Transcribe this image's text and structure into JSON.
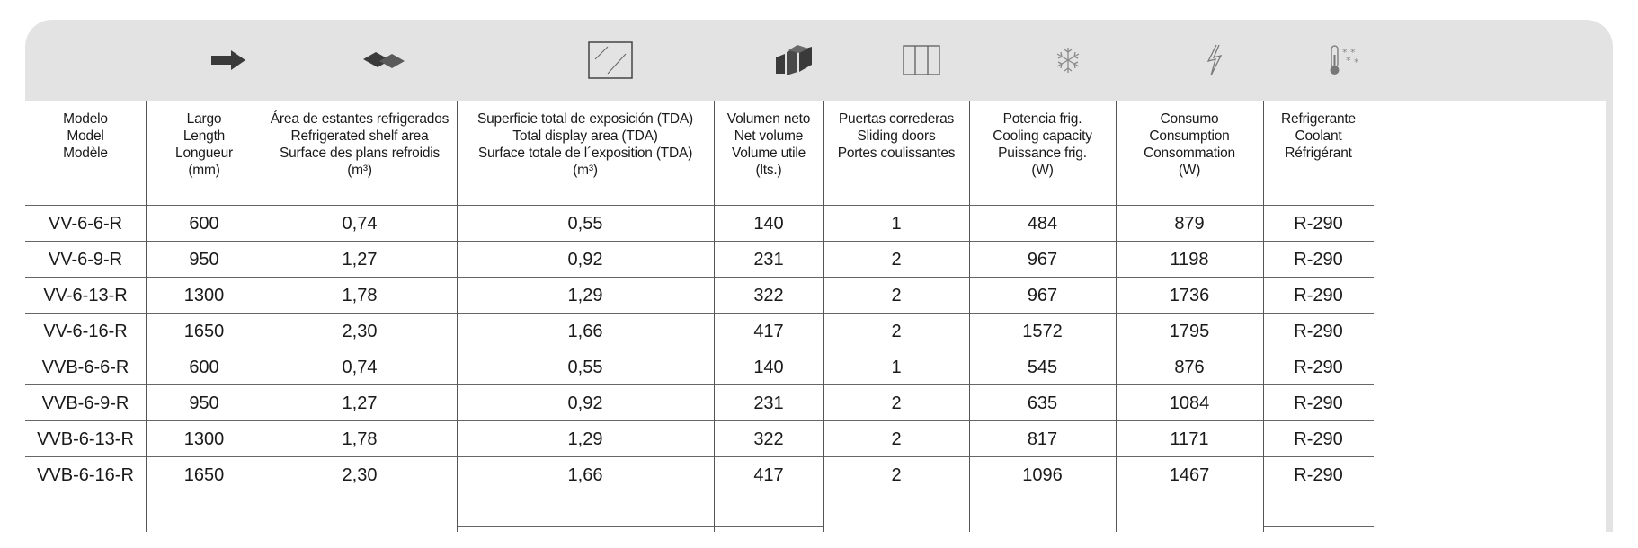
{
  "table": {
    "headers": [
      {
        "lines": [
          "Modelo",
          "Model",
          "Modèle"
        ]
      },
      {
        "lines": [
          "Largo",
          "Length",
          "Longueur",
          "(mm)"
        ]
      },
      {
        "lines": [
          "Área de estantes refrigerados",
          "Refrigerated shelf area",
          "Surface des plans refroidis",
          "(m³)"
        ]
      },
      {
        "lines": [
          "Superficie total de exposición (TDA)",
          "Total display area (TDA)",
          "Surface totale de l´exposition (TDA)",
          "(m³)"
        ]
      },
      {
        "lines": [
          "Volumen neto",
          "Net volume",
          "Volume utile",
          "(lts.)"
        ]
      },
      {
        "lines": [
          "Puertas correderas",
          "Sliding doors",
          "Portes coulissantes"
        ]
      },
      {
        "lines": [
          "Potencia frig.",
          "Cooling capacity",
          "Puissance frig.",
          "(W)"
        ]
      },
      {
        "lines": [
          "Consumo",
          "Consumption",
          "Consommation",
          "(W)"
        ]
      },
      {
        "lines": [
          "Refrigerante",
          "Coolant",
          "Réfrigérant"
        ]
      }
    ],
    "rows": [
      [
        "VV-6-6-R",
        "600",
        "0,74",
        "0,55",
        "140",
        "1",
        "484",
        "879",
        "R-290"
      ],
      [
        "VV-6-9-R",
        "950",
        "1,27",
        "0,92",
        "231",
        "2",
        "967",
        "1198",
        "R-290"
      ],
      [
        "VV-6-13-R",
        "1300",
        "1,78",
        "1,29",
        "322",
        "2",
        "967",
        "1736",
        "R-290"
      ],
      [
        "VV-6-16-R",
        "1650",
        "2,30",
        "1,66",
        "417",
        "2",
        "1572",
        "1795",
        "R-290"
      ],
      [
        "VVB-6-6-R",
        "600",
        "0,74",
        "0,55",
        "140",
        "1",
        "545",
        "876",
        "R-290"
      ],
      [
        "VVB-6-9-R",
        "950",
        "1,27",
        "0,92",
        "231",
        "2",
        "635",
        "1084",
        "R-290"
      ],
      [
        "VVB-6-13-R",
        "1300",
        "1,78",
        "1,29",
        "322",
        "2",
        "817",
        "1171",
        "R-290"
      ],
      [
        "VVB-6-16-R",
        "1650",
        "2,30",
        "1,66",
        "417",
        "2",
        "1096",
        "1467",
        "R-290"
      ]
    ]
  },
  "icons": [
    {
      "name": "length-arrow-icon"
    },
    {
      "name": "shelf-area-icon"
    },
    {
      "name": "display-glass-icon"
    },
    {
      "name": "volume-cubes-icon"
    },
    {
      "name": "sliding-doors-icon"
    },
    {
      "name": "snowflake-icon"
    },
    {
      "name": "lightning-icon"
    },
    {
      "name": "thermometer-snow-icon"
    }
  ],
  "colors": {
    "panel": "#e3e3e3",
    "icon_dark": "#3a3a3a",
    "icon_light": "#9a9a9a"
  }
}
